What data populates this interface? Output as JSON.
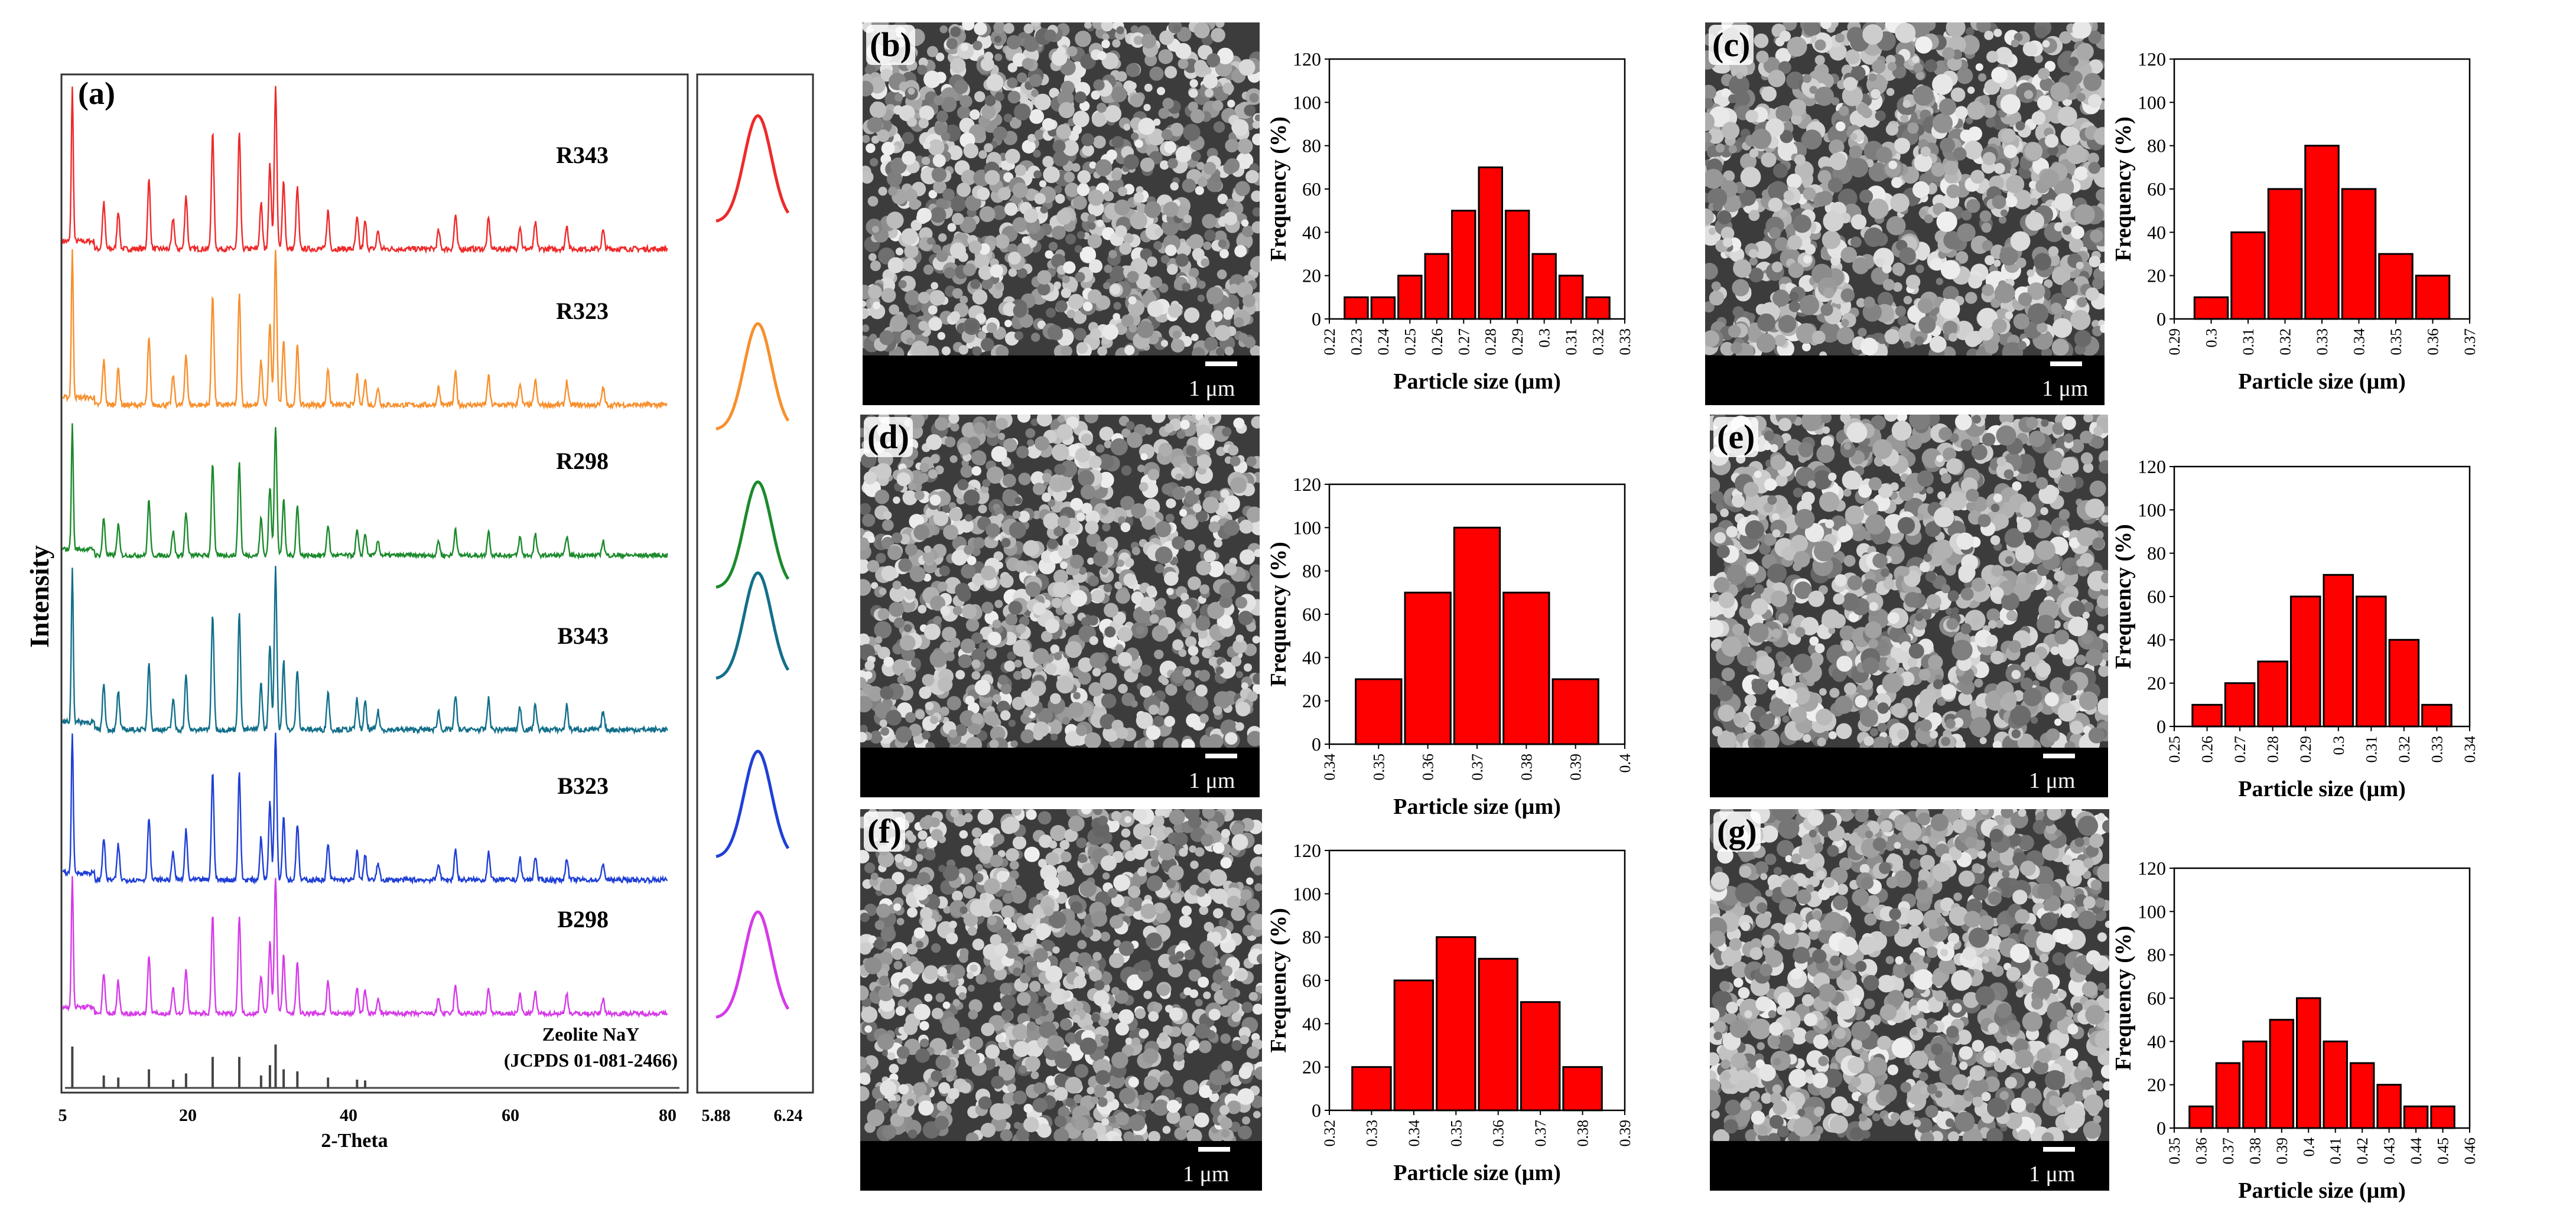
{
  "panel_a": {
    "label": "(a)",
    "ylabel": "Intensity",
    "xlabel": "2-Theta",
    "xticks": [
      "5",
      "20",
      "40",
      "60",
      "80"
    ],
    "inset_ticks": [
      "5.88",
      "6.24"
    ],
    "reference_name": "Zeolite NaY",
    "reference_code": "(JCPDS 01-081-2466)",
    "samples": [
      {
        "name": "R343",
        "color": "#ee2a2a"
      },
      {
        "name": "R323",
        "color": "#f7902e"
      },
      {
        "name": "R298",
        "color": "#1b8a2c"
      },
      {
        "name": "B343",
        "color": "#126f8a"
      },
      {
        "name": "B323",
        "color": "#1f3fd6"
      },
      {
        "name": "B298",
        "color": "#d63ae8"
      }
    ],
    "reference_color": "#444444"
  },
  "sem_panels": [
    {
      "label": "(b)",
      "scale": "1 μm"
    },
    {
      "label": "(c)",
      "scale": "1 μm"
    },
    {
      "label": "(d)",
      "scale": "1 μm"
    },
    {
      "label": "(e)",
      "scale": "1 μm"
    },
    {
      "label": "(f)",
      "scale": "1 μm"
    },
    {
      "label": "(g)",
      "scale": "1 μm"
    }
  ],
  "chart_data": [
    {
      "type": "bar",
      "panel": "(b)",
      "categories": [
        "0.23",
        "0.24",
        "0.25",
        "0.26",
        "0.27",
        "0.28",
        "0.29",
        "0.3",
        "0.31",
        "0.32"
      ],
      "tick_labels": [
        "0.22",
        "0.23",
        "0.24",
        "0.25",
        "0.26",
        "0.27",
        "0.28",
        "0.29",
        "0.3",
        "0.31",
        "0.32",
        "0.33"
      ],
      "values": [
        10,
        10,
        20,
        30,
        50,
        70,
        50,
        30,
        20,
        10
      ],
      "xlabel": "Particle size (µm)",
      "ylabel": "Frequency (%)",
      "ylim": [
        0,
        120
      ],
      "yticks": [
        "0",
        "20",
        "40",
        "60",
        "80",
        "100",
        "120"
      ]
    },
    {
      "type": "bar",
      "panel": "(c)",
      "categories": [
        "0.3",
        "0.31",
        "0.32",
        "0.33",
        "0.34",
        "0.35",
        "0.36"
      ],
      "tick_labels": [
        "0.29",
        "0.3",
        "0.31",
        "0.32",
        "0.33",
        "0.34",
        "0.35",
        "0.36",
        "0.37"
      ],
      "values": [
        10,
        40,
        60,
        80,
        60,
        30,
        20
      ],
      "xlabel": "Particle size (µm)",
      "ylabel": "Frequency (%)",
      "ylim": [
        0,
        120
      ],
      "yticks": [
        "0",
        "20",
        "40",
        "60",
        "80",
        "100",
        "120"
      ]
    },
    {
      "type": "bar",
      "panel": "(d)",
      "categories": [
        "0.35",
        "0.36",
        "0.37",
        "0.38",
        "0.39"
      ],
      "tick_labels": [
        "0.34",
        "0.35",
        "0.36",
        "0.37",
        "0.38",
        "0.39",
        "0.4"
      ],
      "values": [
        30,
        70,
        100,
        70,
        30
      ],
      "xlabel": "Particle size (µm)",
      "ylabel": "Frequency (%)",
      "ylim": [
        0,
        120
      ],
      "yticks": [
        "0",
        "20",
        "40",
        "60",
        "80",
        "100",
        "120"
      ]
    },
    {
      "type": "bar",
      "panel": "(e)",
      "categories": [
        "0.26",
        "0.27",
        "0.28",
        "0.29",
        "0.3",
        "0.31",
        "0.32",
        "0.33"
      ],
      "tick_labels": [
        "0.25",
        "0.26",
        "0.27",
        "0.28",
        "0.29",
        "0.3",
        "0.31",
        "0.32",
        "0.33",
        "0.34"
      ],
      "values": [
        10,
        20,
        30,
        60,
        70,
        60,
        40,
        10
      ],
      "xlabel": "Particle size (µm)",
      "ylabel": "Frequency (%)",
      "ylim": [
        0,
        120
      ],
      "yticks": [
        "0",
        "20",
        "40",
        "60",
        "80",
        "100",
        "120"
      ]
    },
    {
      "type": "bar",
      "panel": "(f)",
      "categories": [
        "0.33",
        "0.34",
        "0.35",
        "0.36",
        "0.37",
        "0.38"
      ],
      "tick_labels": [
        "0.32",
        "0.33",
        "0.34",
        "0.35",
        "0.36",
        "0.37",
        "0.38",
        "0.39"
      ],
      "values": [
        20,
        60,
        80,
        70,
        50,
        20
      ],
      "xlabel": "Particle size (µm)",
      "ylabel": "Frequency (%)",
      "ylim": [
        0,
        120
      ],
      "yticks": [
        "0",
        "20",
        "40",
        "60",
        "80",
        "100",
        "120"
      ]
    },
    {
      "type": "bar",
      "panel": "(g)",
      "categories": [
        "0.36",
        "0.37",
        "0.38",
        "0.39",
        "0.4",
        "0.41",
        "0.42",
        "0.43",
        "0.44",
        "0.45"
      ],
      "tick_labels": [
        "0.35",
        "0.36",
        "0.37",
        "0.38",
        "0.39",
        "0.4",
        "0.41",
        "0.42",
        "0.43",
        "0.44",
        "0.45",
        "0.46"
      ],
      "values": [
        10,
        30,
        40,
        50,
        60,
        40,
        30,
        20,
        10,
        10
      ],
      "xlabel": "Particle size (µm)",
      "ylabel": "Frequency (%)",
      "ylim": [
        0,
        120
      ],
      "yticks": [
        "0",
        "20",
        "40",
        "60",
        "80",
        "100",
        "120"
      ]
    }
  ]
}
